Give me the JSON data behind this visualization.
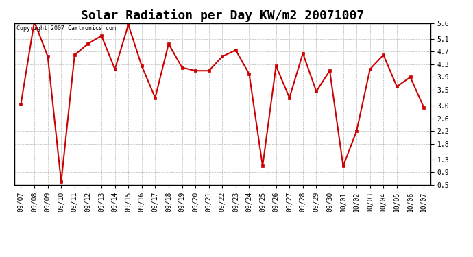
{
  "title": "Solar Radiation per Day KW/m2 20071007",
  "copyright_text": "Copyright 2007 Cartronics.com",
  "labels": [
    "09/07",
    "09/08",
    "09/09",
    "09/10",
    "09/11",
    "09/12",
    "09/13",
    "09/14",
    "09/15",
    "09/16",
    "09/17",
    "09/18",
    "09/19",
    "09/20",
    "09/21",
    "09/22",
    "09/23",
    "09/24",
    "09/25",
    "09/26",
    "09/27",
    "09/28",
    "09/29",
    "09/30",
    "10/01",
    "10/02",
    "10/03",
    "10/04",
    "10/05",
    "10/06",
    "10/07"
  ],
  "values": [
    3.05,
    5.65,
    4.55,
    0.6,
    4.6,
    4.95,
    5.2,
    4.15,
    5.55,
    4.25,
    3.25,
    4.95,
    4.2,
    4.1,
    4.1,
    4.55,
    4.75,
    4.0,
    1.1,
    4.25,
    3.25,
    4.65,
    3.45,
    4.1,
    1.1,
    2.2,
    4.15,
    4.6,
    3.6,
    3.9,
    2.95
  ],
  "line_color": "#cc0000",
  "marker": "s",
  "marker_size": 2.5,
  "line_width": 1.5,
  "ylim": [
    0.5,
    5.6
  ],
  "yticks": [
    0.5,
    0.9,
    1.3,
    1.8,
    2.2,
    2.6,
    3.0,
    3.5,
    3.9,
    4.3,
    4.7,
    5.1,
    5.6
  ],
  "background_color": "#ffffff",
  "grid_color": "#bbbbbb",
  "title_fontsize": 13,
  "tick_fontsize": 7,
  "copyright_fontsize": 6
}
